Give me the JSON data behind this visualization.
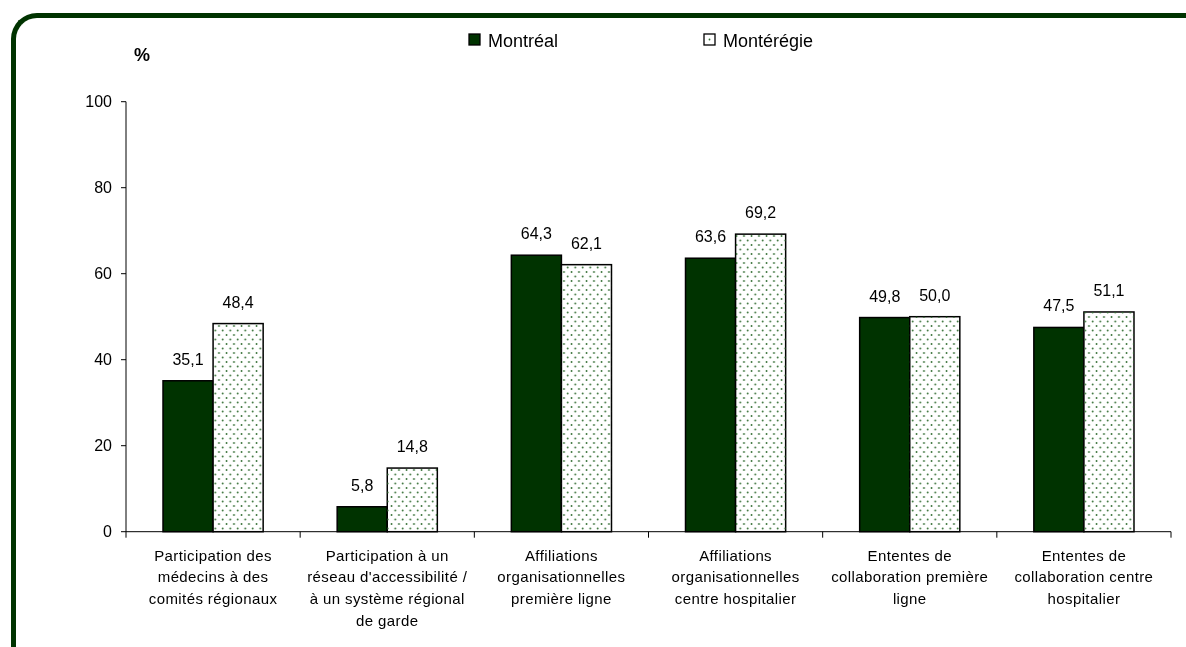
{
  "chart_data": {
    "type": "bar",
    "ylabel": "%",
    "categories": [
      "Participation des médecins à des comités régionaux",
      "Participation à un réseau d'accessibilité / à un système régional de garde",
      "Affiliations organisationnelles première ligne",
      "Affiliations organisationnelles centre hospitalier",
      "Ententes de collaboration première ligne",
      "Ententes de collaboration centre hospitalier"
    ],
    "series": [
      {
        "name": "Montréal",
        "color": "#003300",
        "values": [
          35.1,
          5.8,
          64.3,
          63.6,
          49.8,
          47.5
        ],
        "value_labels": [
          "35,1",
          "5,8",
          "64,3",
          "63,6",
          "49,8",
          "47,5"
        ]
      },
      {
        "name": "Montérégie",
        "color": "#ffffff",
        "values": [
          48.4,
          14.8,
          62.1,
          69.2,
          50.0,
          51.1
        ],
        "value_labels": [
          "48,4",
          "14,8",
          "62,1",
          "69,2",
          "50,0",
          "51,1"
        ]
      }
    ],
    "ylim": [
      0,
      100
    ],
    "yticks": [
      0,
      20,
      40,
      60,
      80,
      100
    ],
    "legend": "top"
  }
}
